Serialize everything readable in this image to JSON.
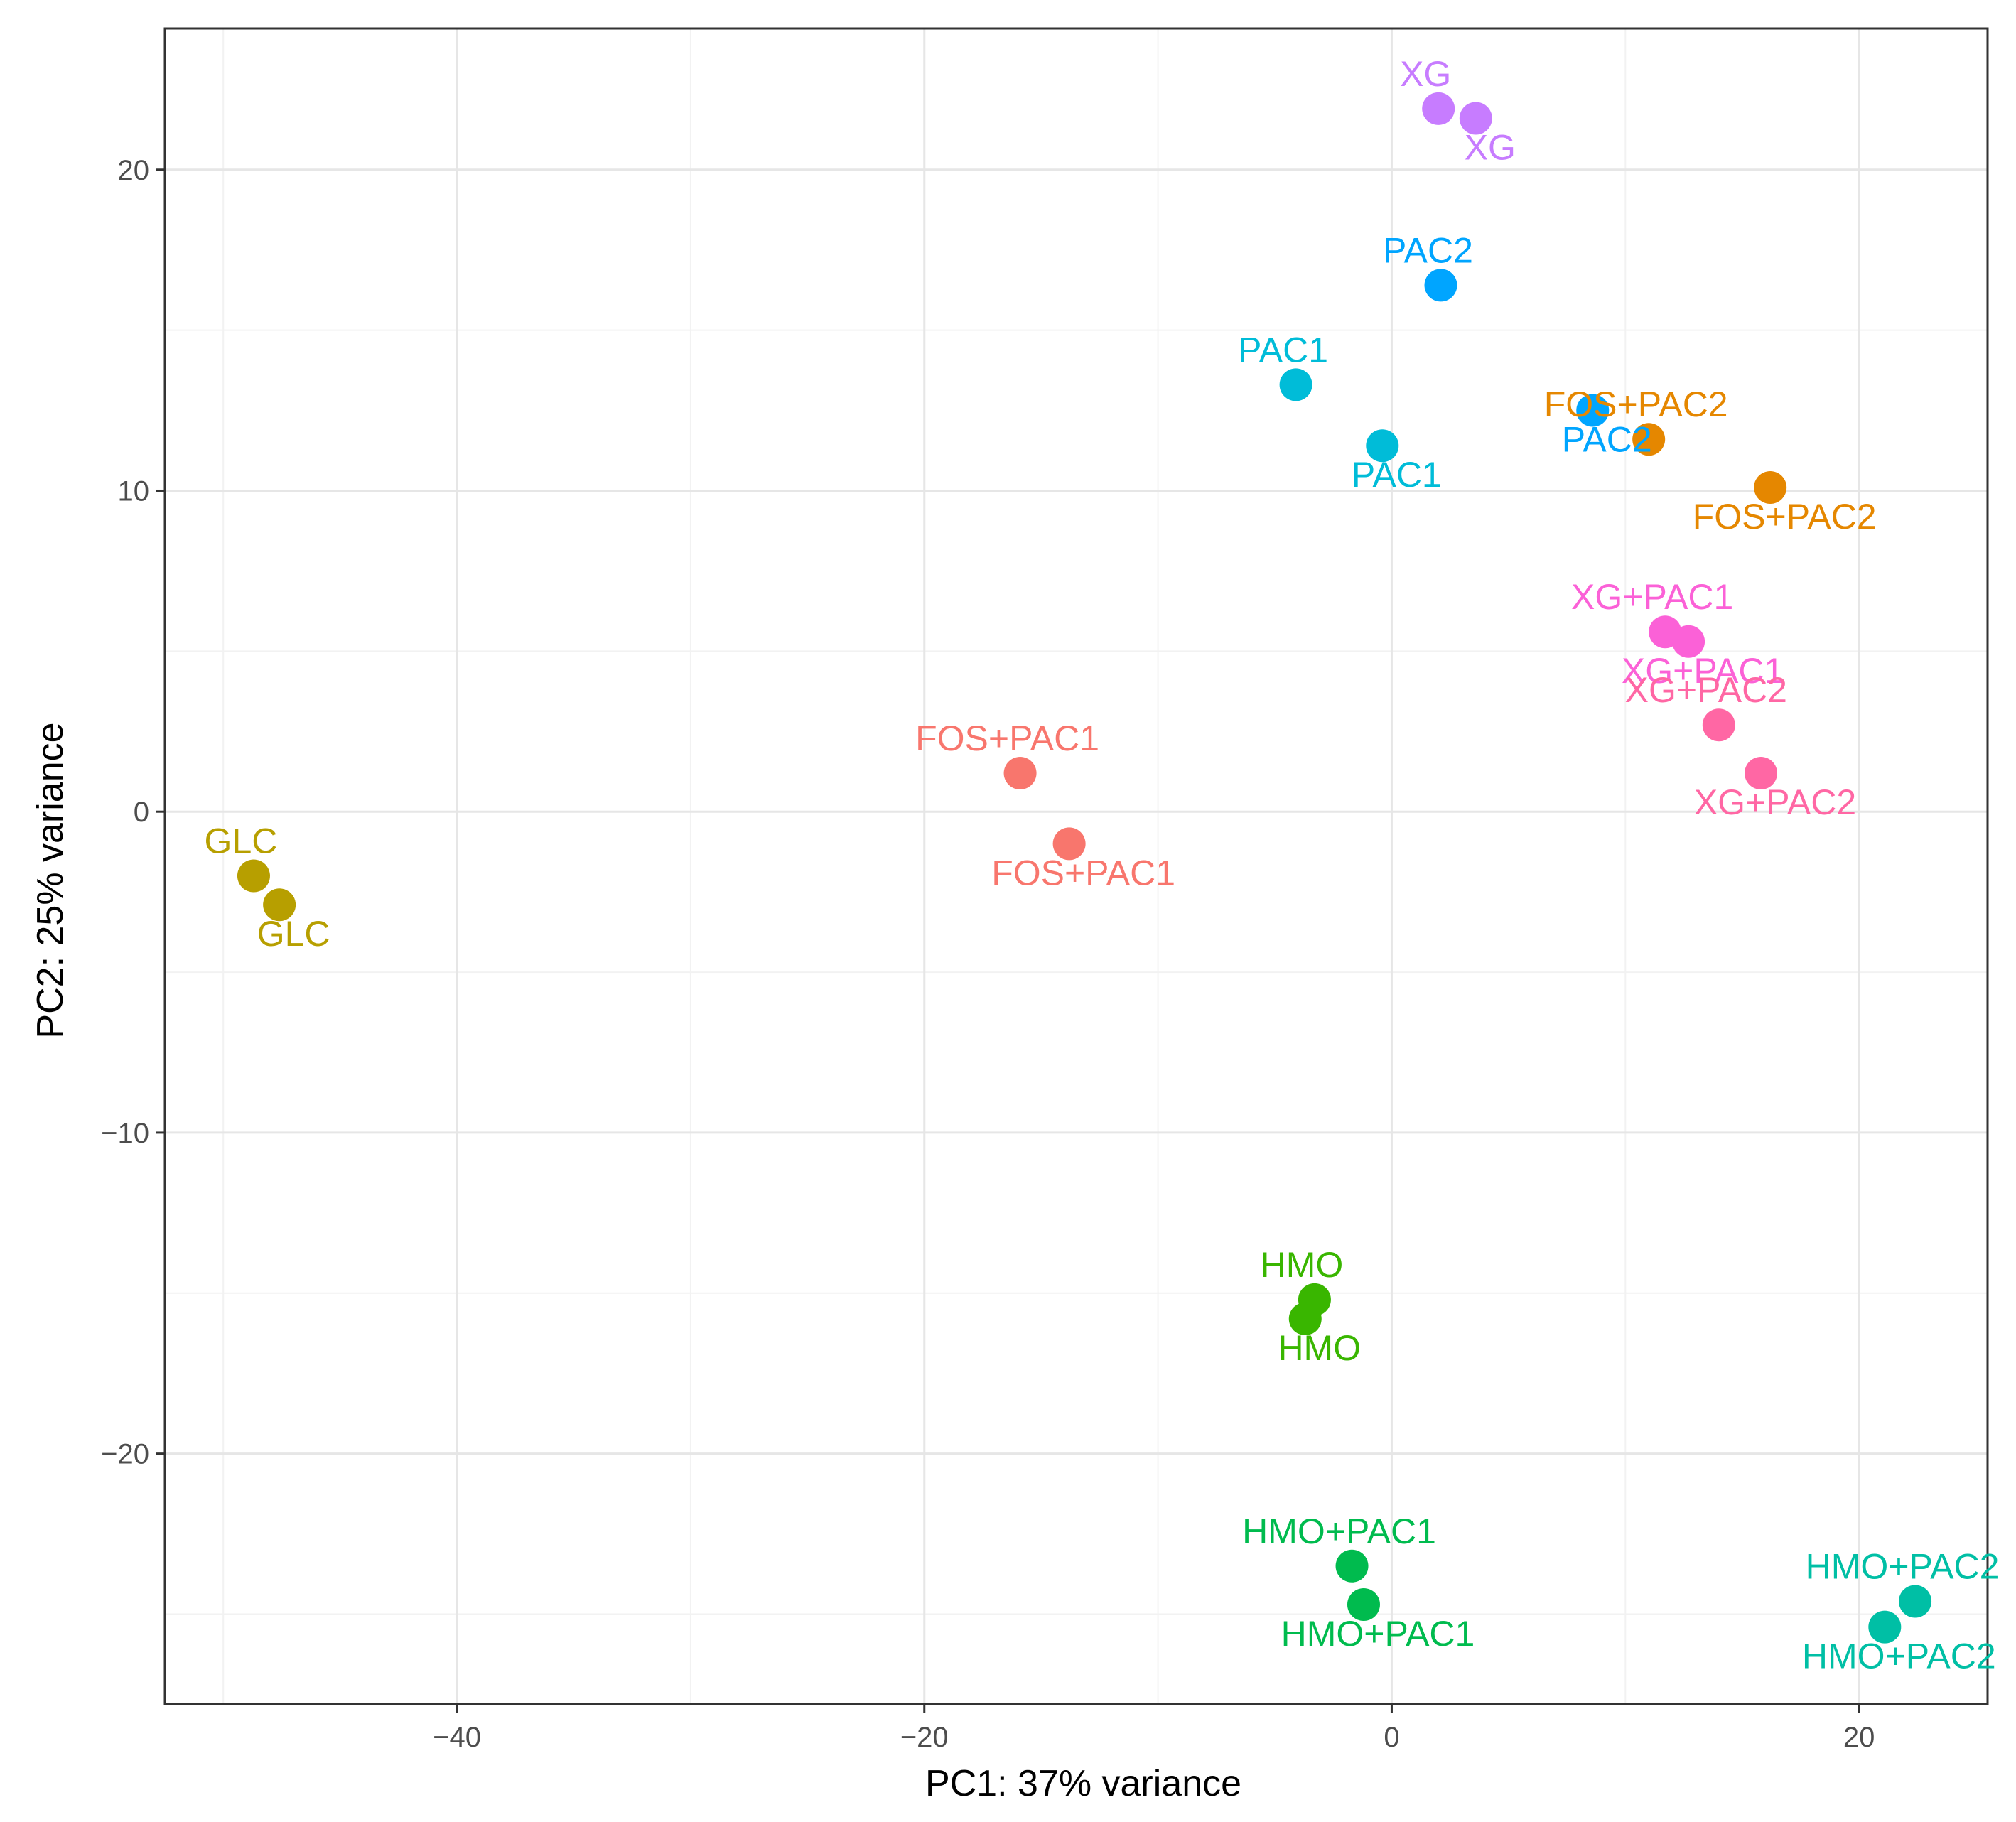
{
  "chart_data": {
    "type": "scatter",
    "title": "",
    "xlabel": "PC1: 37% variance",
    "ylabel": "PC2: 25% variance",
    "xlim": [
      -52.5,
      25.5
    ],
    "ylim": [
      -27.8,
      24.4
    ],
    "x_ticks": [
      -40,
      -20,
      0,
      20
    ],
    "y_ticks": [
      -20,
      -10,
      0,
      10,
      20
    ],
    "x_tick_labels": [
      "−40",
      "−20",
      "0",
      "20"
    ],
    "y_tick_labels": [
      "−20",
      "−10",
      "0",
      "10",
      "20"
    ],
    "grid": true,
    "legend": "none",
    "series": [
      {
        "name": "FOS+PAC1",
        "color": "#F8766D",
        "points": [
          {
            "x": -15.9,
            "y": 1.2,
            "label": "FOS+PAC1"
          },
          {
            "x": -13.8,
            "y": -1.0,
            "label": "FOS+PAC1"
          }
        ]
      },
      {
        "name": "FOS+PAC2",
        "color": "#E58700",
        "points": [
          {
            "x": 11.0,
            "y": 11.6,
            "label": "FOS+PAC2"
          },
          {
            "x": 16.2,
            "y": 10.1,
            "label": "FOS+PAC2"
          }
        ]
      },
      {
        "name": "GLC",
        "color": "#B79F00",
        "points": [
          {
            "x": -48.7,
            "y": -2.0,
            "label": "GLC"
          },
          {
            "x": -47.6,
            "y": -2.9,
            "label": "GLC"
          }
        ]
      },
      {
        "name": "HMO",
        "color": "#39B600",
        "points": [
          {
            "x": -3.3,
            "y": -15.2,
            "label": "HMO"
          },
          {
            "x": -3.7,
            "y": -15.8,
            "label": "HMO"
          }
        ]
      },
      {
        "name": "HMO+PAC1",
        "color": "#00BB4E",
        "points": [
          {
            "x": -1.7,
            "y": -23.5,
            "label": "HMO+PAC1"
          },
          {
            "x": -1.2,
            "y": -24.7,
            "label": "HMO+PAC1"
          }
        ]
      },
      {
        "name": "HMO+PAC2",
        "color": "#00BFA5",
        "points": [
          {
            "x": 22.4,
            "y": -24.6,
            "label": "HMO+PAC2"
          },
          {
            "x": 21.1,
            "y": -25.4,
            "label": "HMO+PAC2"
          }
        ]
      },
      {
        "name": "PAC1",
        "color": "#00BCD8",
        "points": [
          {
            "x": -4.1,
            "y": 13.3,
            "label": "PAC1"
          },
          {
            "x": -0.4,
            "y": 11.4,
            "label": "PAC1"
          }
        ]
      },
      {
        "name": "PAC2",
        "color": "#00A5FF",
        "points": [
          {
            "x": 2.1,
            "y": 16.4,
            "label": "PAC2"
          },
          {
            "x": 8.6,
            "y": 12.5,
            "label": "PAC2"
          }
        ]
      },
      {
        "name": "XG",
        "color": "#C77CFF",
        "points": [
          {
            "x": 2.0,
            "y": 21.9,
            "label": "XG"
          },
          {
            "x": 3.6,
            "y": 21.6,
            "label": "XG"
          }
        ]
      },
      {
        "name": "XG+PAC1",
        "color": "#FB61D7",
        "points": [
          {
            "x": 11.7,
            "y": 5.6,
            "label": "XG+PAC1"
          },
          {
            "x": 12.7,
            "y": 5.3,
            "label": "XG+PAC1"
          }
        ]
      },
      {
        "name": "XG+PAC2",
        "color": "#FF67A4",
        "points": [
          {
            "x": 14.0,
            "y": 2.7,
            "label": "XG+PAC2"
          },
          {
            "x": 15.8,
            "y": 1.2,
            "label": "XG+PAC2"
          }
        ]
      }
    ]
  }
}
